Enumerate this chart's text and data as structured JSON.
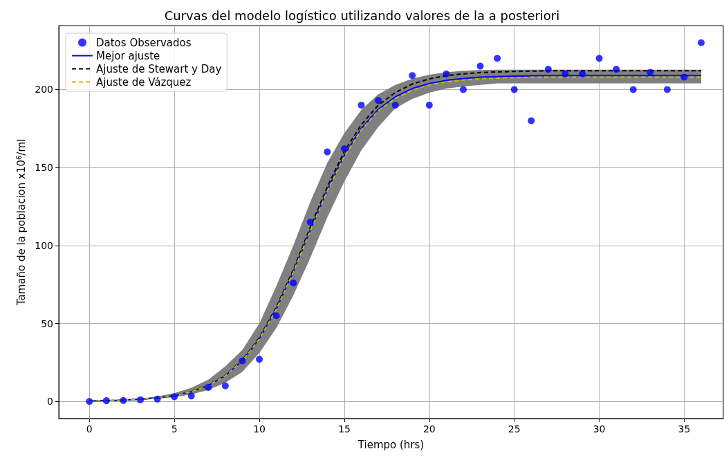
{
  "chart_data": {
    "type": "line",
    "title": "Curvas del modelo logístico utilizando valores de la a posteriori",
    "xlabel": "Tiempo (hrs)",
    "ylabel": "Tamaño de la poblacion x10$^{6}$/ml",
    "x": [
      0,
      1,
      2,
      3,
      4,
      5,
      6,
      7,
      8,
      9,
      10,
      11,
      12,
      13,
      14,
      15,
      16,
      17,
      18,
      19,
      20,
      21,
      22,
      23,
      24,
      25,
      26,
      27,
      28,
      29,
      30,
      31,
      32,
      33,
      34,
      35,
      36
    ],
    "series": [
      {
        "name": "Datos Observados",
        "type": "scatter",
        "marker": "circle",
        "color": "#0000ff",
        "values": [
          0,
          0.5,
          0.6,
          1,
          1.5,
          3,
          3.5,
          9,
          10,
          26,
          27,
          55,
          76,
          115,
          160,
          162,
          190,
          193,
          190,
          209,
          190,
          210,
          200,
          215,
          220,
          200,
          180,
          213,
          210,
          210,
          220,
          213,
          200,
          211,
          200,
          208,
          230
        ]
      },
      {
        "name": "Mejor ajuste",
        "line_style": "solid",
        "color": "#0000ff",
        "values": [
          0.3,
          0.5,
          0.8,
          1.4,
          2.3,
          3.8,
          6.2,
          10.2,
          16.5,
          26.1,
          40.2,
          59.5,
          83.3,
          110,
          135.7,
          157.9,
          175,
          187.3,
          195.3,
          200.6,
          203.9,
          205.9,
          207.1,
          207.9,
          208.3,
          208.6,
          208.8,
          208.9,
          209,
          209,
          209,
          209,
          209,
          209,
          209,
          209,
          209
        ],
        "lower": [
          0.2,
          0.4,
          0.6,
          1,
          1.6,
          2.7,
          4.5,
          7.3,
          12,
          19,
          31,
          47,
          68,
          92,
          118,
          141,
          161,
          176,
          188,
          194,
          198,
          200.6,
          202,
          203,
          204,
          204,
          204,
          204,
          204,
          204,
          204,
          204,
          204,
          204,
          204,
          204,
          204
        ],
        "upper": [
          0.4,
          0.7,
          1.2,
          1.9,
          3.2,
          5.3,
          8.7,
          14,
          22.5,
          33,
          50,
          74,
          100,
          128,
          153,
          172,
          187,
          197,
          203,
          207,
          209.5,
          211,
          212,
          212.5,
          212.7,
          212.7,
          212.7,
          212.7,
          212.7,
          212.7,
          212.7,
          212.7,
          212.7,
          212.7,
          212.7,
          212.7,
          212.7
        ]
      },
      {
        "name": "Ajuste de Stewart y Day",
        "line_style": "dashed",
        "color": "#000000",
        "values": [
          0.3,
          0.5,
          0.8,
          1.4,
          2.3,
          3.8,
          6.3,
          10.3,
          16.7,
          26.5,
          40.8,
          60.4,
          84.5,
          111.6,
          137.7,
          160.2,
          177.5,
          190,
          198.1,
          203.5,
          206.8,
          208.9,
          210.1,
          210.9,
          211.3,
          211.6,
          211.8,
          212,
          212,
          212,
          212,
          212,
          212,
          212,
          212,
          212,
          212
        ]
      },
      {
        "name": "Ajuste de Vázquez",
        "line_style": "dashed",
        "color": "#bfbf00",
        "values": [
          0.3,
          0.5,
          0.8,
          1.4,
          2.3,
          3.8,
          6.2,
          10.1,
          16.4,
          26,
          40,
          59.2,
          82.9,
          109.5,
          135,
          157.1,
          174.1,
          186.4,
          194.3,
          199.6,
          202.9,
          204.9,
          206.1,
          206.9,
          207.3,
          207.6,
          207.8,
          208,
          208,
          208,
          208,
          208,
          208,
          208,
          208,
          208,
          208
        ]
      }
    ],
    "xlim": [
      -1.8,
      37.3
    ],
    "ylim": [
      -11,
      241
    ],
    "xticks": [
      0,
      5,
      10,
      15,
      20,
      25,
      30,
      35
    ],
    "yticks": [
      0,
      50,
      100,
      150,
      200
    ],
    "grid": true,
    "legend": "top left"
  }
}
